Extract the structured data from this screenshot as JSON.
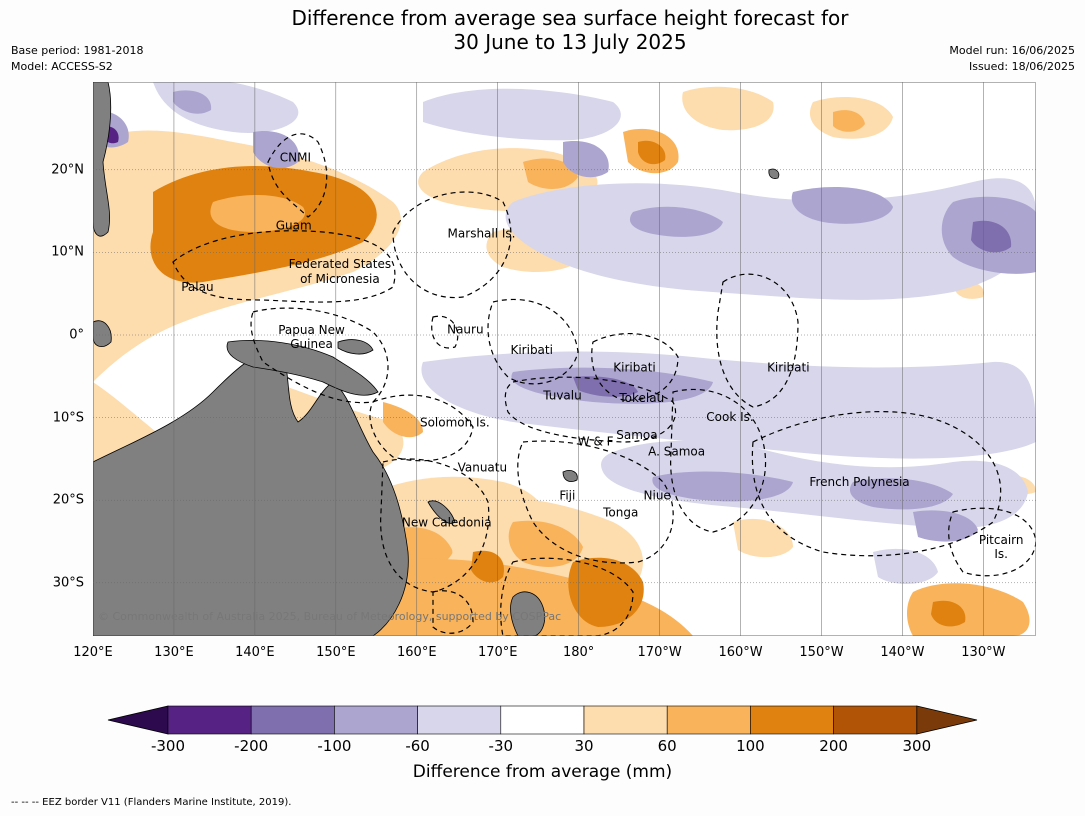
{
  "title": {
    "line1": "Difference from average sea surface height forecast for",
    "line2": "30 June to 13 July 2025"
  },
  "meta": {
    "base_period": "Base period: 1981-2018",
    "model": "Model: ACCESS-S2",
    "model_run": "Model run: 16/06/2025",
    "issued": "Issued: 18/06/2025"
  },
  "map": {
    "lon_ticks": [
      "120°E",
      "130°E",
      "140°E",
      "150°E",
      "160°E",
      "170°E",
      "180°",
      "170°W",
      "160°W",
      "150°W",
      "140°W",
      "130°W"
    ],
    "lat_ticks": [
      "20°N",
      "10°N",
      "0°",
      "10°S",
      "20°S",
      "30°S"
    ],
    "labels": [
      {
        "text": "CNMI",
        "lon": 145,
        "lat": 21.0
      },
      {
        "text": "Guam",
        "lon": 144.8,
        "lat": 12.8
      },
      {
        "text": "Marshall Is.",
        "lon": 168.0,
        "lat": 11.8
      },
      {
        "text": "Federated States",
        "lon": 150.5,
        "lat": 8.1
      },
      {
        "text": "of Micronesia",
        "lon": 150.5,
        "lat": 6.3
      },
      {
        "text": "Palau",
        "lon": 132.9,
        "lat": 5.3
      },
      {
        "text": "Papua New",
        "lon": 147.0,
        "lat": 0.1
      },
      {
        "text": "Guinea",
        "lon": 147.0,
        "lat": -1.6
      },
      {
        "text": "Nauru",
        "lon": 166.0,
        "lat": 0.2
      },
      {
        "text": "Kiribati",
        "lon": 174.2,
        "lat": -2.3
      },
      {
        "text": "Kiribati",
        "lon": -173.1,
        "lat": -4.4
      },
      {
        "text": "Kiribati",
        "lon": -154.1,
        "lat": -4.4
      },
      {
        "text": "Tuvalu",
        "lon": 178.0,
        "lat": -7.8
      },
      {
        "text": "Tokelau",
        "lon": -172.2,
        "lat": -8.1
      },
      {
        "text": "Cook Is.",
        "lon": -161.3,
        "lat": -10.4
      },
      {
        "text": "Solomon Is.",
        "lon": 164.7,
        "lat": -11.1
      },
      {
        "text": "Samoa",
        "lon": -172.8,
        "lat": -12.6
      },
      {
        "text": "W & F",
        "lon": -177.9,
        "lat": -13.4
      },
      {
        "text": "A. Samoa",
        "lon": -167.9,
        "lat": -14.6
      },
      {
        "text": "Vanuatu",
        "lon": 168.1,
        "lat": -16.5
      },
      {
        "text": "French Polynesia",
        "lon": -145.3,
        "lat": -18.3
      },
      {
        "text": "Fiji",
        "lon": 178.6,
        "lat": -19.9
      },
      {
        "text": "Niue",
        "lon": -170.3,
        "lat": -19.9
      },
      {
        "text": "Tonga",
        "lon": -174.8,
        "lat": -22.0
      },
      {
        "text": "New Caledonia",
        "lon": 163.7,
        "lat": -23.2
      },
      {
        "text": "Pitcairn",
        "lon": -127.8,
        "lat": -25.3
      },
      {
        "text": "Is.",
        "lon": -127.8,
        "lat": -27.0
      }
    ],
    "copyright": "© Commonwealth of Australia 2025, Bureau of Meteorology, supported by COSPPac"
  },
  "legend": {
    "title": "Difference from average (mm)",
    "tick_labels": [
      "-300",
      "-200",
      "-100",
      "-60",
      "-30",
      "30",
      "60",
      "100",
      "200",
      "300"
    ],
    "colors": [
      "#2d0a4e",
      "#562384",
      "#7f6fae",
      "#aca5cf",
      "#d7d6ea",
      "#ffffff",
      "#fddcae",
      "#f8b35b",
      "#e0820f",
      "#b25406",
      "#7a3a0a"
    ]
  },
  "footnote": "--  --  -- EEZ border V11 (Flanders Marine Institute, 2019).",
  "colors": {
    "land": "#808080",
    "gridline": "#666666",
    "eez": "#000000"
  }
}
